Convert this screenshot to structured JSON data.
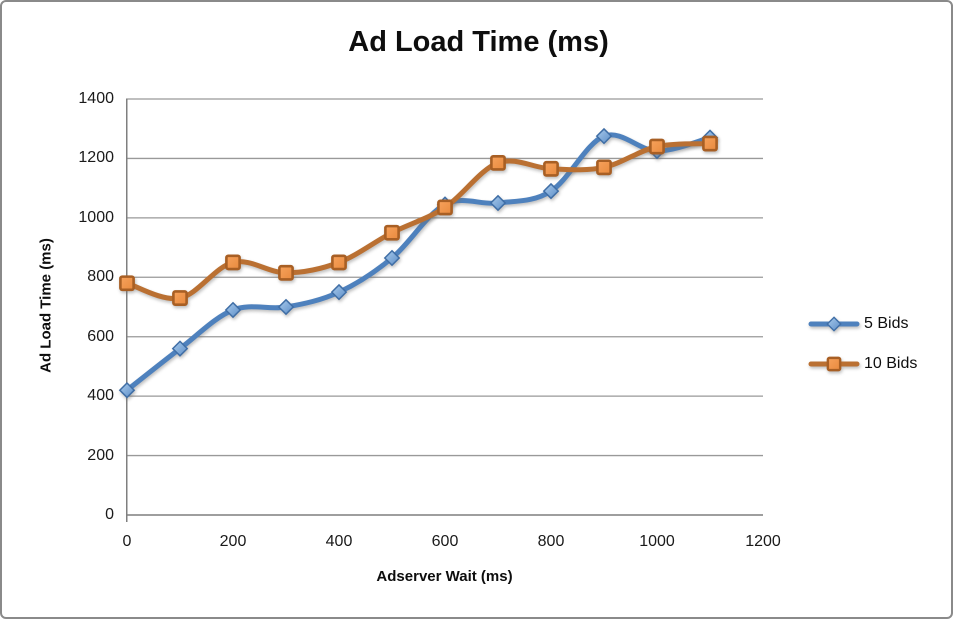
{
  "chart": {
    "title": "Ad Load Time (ms)",
    "x_axis_title": "Adserver Wait (ms)",
    "y_axis_title": "Ad Load Time (ms)"
  },
  "chart_data": {
    "type": "line",
    "title": "Ad Load Time (ms)",
    "xlabel": "Adserver Wait (ms)",
    "ylabel": "Ad Load Time (ms)",
    "x": [
      0,
      100,
      200,
      300,
      400,
      500,
      600,
      700,
      800,
      900,
      1000,
      1100
    ],
    "series": [
      {
        "name": "5 Bids",
        "marker": "diamond",
        "line_color": "#4E81BD",
        "marker_fill_light": "#A9CBEC",
        "marker_fill_dark": "#5C8DC7",
        "marker_stroke": "#3F6EA6",
        "values": [
          420,
          560,
          690,
          700,
          750,
          865,
          1045,
          1050,
          1090,
          1275,
          1225,
          1270
        ]
      },
      {
        "name": "10 Bids",
        "marker": "square",
        "line_color": "#BA7032",
        "marker_fill_light": "#F7A25C",
        "marker_fill_dark": "#E88A3E",
        "marker_stroke": "#A85F24",
        "values": [
          780,
          730,
          850,
          815,
          850,
          950,
          1035,
          1185,
          1165,
          1170,
          1240,
          1250
        ]
      }
    ],
    "xlim": [
      0,
      1200
    ],
    "ylim": [
      0,
      1400
    ],
    "xticks": [
      0,
      200,
      400,
      600,
      800,
      1000,
      1200
    ],
    "yticks": [
      0,
      200,
      400,
      600,
      800,
      1000,
      1200,
      1400
    ],
    "grid": true,
    "smoothed_lines": true,
    "legend_position": "right",
    "gridline_color": "#999999",
    "axis_color": "#7f7f7f"
  }
}
